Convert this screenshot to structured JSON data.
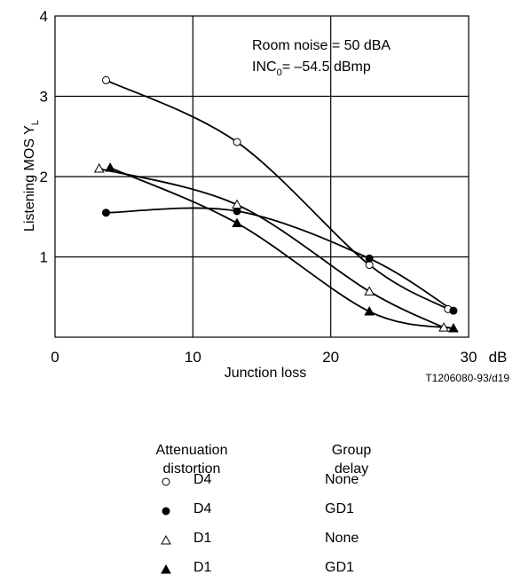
{
  "chart_data": {
    "type": "scatter",
    "xlabel": "Junction loss",
    "x_unit": "dB",
    "ylabel_main": "Listening MOS Y",
    "ylabel_sub": "L",
    "xlim": [
      0,
      30
    ],
    "ylim": [
      0,
      4
    ],
    "x_ticks": [
      0,
      10,
      20,
      30
    ],
    "y_ticks": [
      1,
      2,
      3,
      4
    ],
    "grid": true,
    "annotations": {
      "line1": "Room noise = 50 dBA",
      "line2_main": "INC",
      "line2_sub": "0",
      "line2_rest": "= –54.5 dBmp"
    },
    "figure_id": "T1206080-93/d19",
    "series": [
      {
        "attenuation": "D4",
        "group_delay": "None",
        "marker": "open-circle",
        "points": [
          [
            3.7,
            3.2
          ],
          [
            13.2,
            2.43
          ],
          [
            22.8,
            0.9
          ],
          [
            28.5,
            0.35
          ]
        ]
      },
      {
        "attenuation": "D4",
        "group_delay": "GD1",
        "marker": "filled-circle",
        "points": [
          [
            3.7,
            1.55
          ],
          [
            13.2,
            1.57
          ],
          [
            22.8,
            0.98
          ],
          [
            28.9,
            0.33
          ]
        ]
      },
      {
        "attenuation": "D1",
        "group_delay": "None",
        "marker": "open-triangle",
        "points": [
          [
            3.2,
            2.1
          ],
          [
            13.2,
            1.65
          ],
          [
            22.8,
            0.57
          ],
          [
            28.2,
            0.12
          ]
        ]
      },
      {
        "attenuation": "D1",
        "group_delay": "GD1",
        "marker": "filled-triangle",
        "points": [
          [
            4.0,
            2.11
          ],
          [
            13.2,
            1.42
          ],
          [
            22.8,
            0.32
          ],
          [
            28.9,
            0.11
          ]
        ]
      }
    ]
  },
  "legend": {
    "col1_header_line1": "Attenuation",
    "col1_header_line2": "distortion",
    "col2_header_line1": "Group",
    "col2_header_line2": "delay",
    "rows": [
      {
        "marker": "open-circle",
        "attenuation": "D4",
        "delay": "None"
      },
      {
        "marker": "filled-circle",
        "attenuation": "D4",
        "delay": "GD1"
      },
      {
        "marker": "open-triangle",
        "attenuation": "D1",
        "delay": "None"
      },
      {
        "marker": "filled-triangle",
        "attenuation": "D1",
        "delay": "GD1"
      }
    ]
  },
  "colors": {
    "ink": "#000000",
    "background": "#ffffff"
  }
}
